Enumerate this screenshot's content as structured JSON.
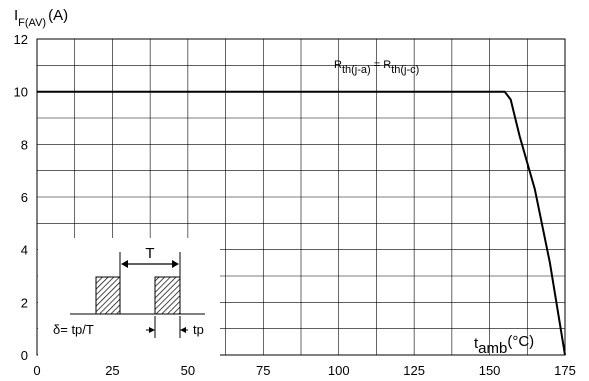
{
  "chart_data": {
    "type": "line",
    "ylabel": {
      "main": "I",
      "sub": "F(AV)",
      "unit": "(A)"
    },
    "xlabel": {
      "main": "t",
      "sub": "amb",
      "unit": "(°C)"
    },
    "xlim": [
      0,
      175
    ],
    "ylim": [
      0,
      12
    ],
    "x_ticks": [
      0,
      25,
      50,
      75,
      100,
      125,
      150,
      175
    ],
    "y_ticks": [
      0,
      2,
      4,
      6,
      8,
      10,
      12
    ],
    "grid": true,
    "series": [
      {
        "x": [
          0,
          155,
          157,
          160,
          165,
          170,
          175
        ],
        "y": [
          10,
          10,
          9.7,
          8.3,
          6.3,
          3.5,
          0
        ]
      }
    ],
    "annotation": {
      "r1": "R",
      "r1_sub": "th(j-a)",
      "eq": " = ",
      "r2": "R",
      "r2_sub": "th(j-c)"
    },
    "inset": {
      "period_label": "T",
      "duty_label": "δ= tp/T",
      "pulse_label": "tp"
    }
  }
}
